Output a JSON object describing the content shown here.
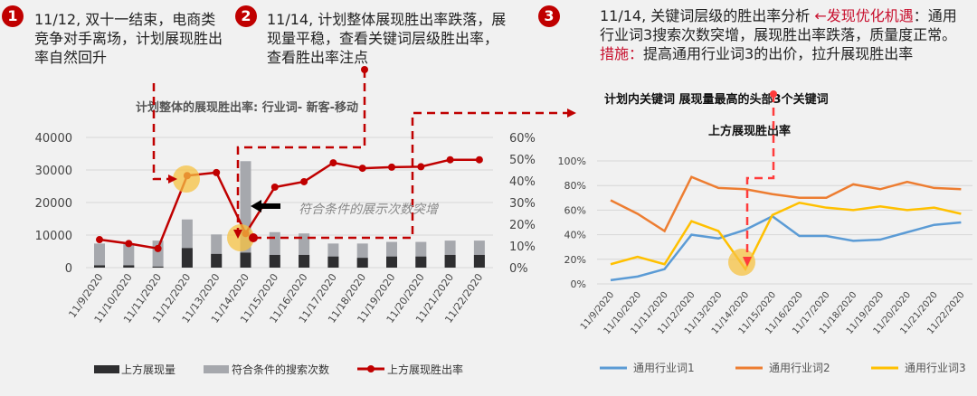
{
  "notes": [
    {
      "num": "1",
      "text": "11/12, 双十一结束，电商类竞争对手离场，计划展现胜出率自然回升"
    },
    {
      "num": "2",
      "text": "11/14, 计划整体展现胜出率跌落，展现量平稳，查看关键词层级胜出率，查看胜出率注点"
    },
    {
      "num": "3",
      "parts": [
        "11/14, 关键词层级的胜出率分析 ",
        "←发现优化机遇",
        "：通用行业词3搜索次数突增，展现胜出率跌落，质量度正常。",
        "措施：",
        "提高通用行业词3的出价，拉升展现胜出率"
      ]
    }
  ],
  "annotation_left": "符合条件的展示次数突增",
  "colors": {
    "accent_red": "#c00000",
    "bar_dark": "#2e2e30",
    "bar_gray": "#a6a8ad",
    "line_red": "#c00000",
    "series1": "#5b9bd5",
    "series2": "#ed7d31",
    "series3": "#ffc000",
    "highlight": "#f5c242"
  },
  "chart_data": [
    {
      "type": "bar+line",
      "title": "计划整体的展现胜出率: 行业词- 新客-移动",
      "categories": [
        "11/9/2020",
        "11/10/2020",
        "11/11/2020",
        "11/12/2020",
        "11/13/2020",
        "11/14/2020",
        "11/15/2020",
        "11/16/2020",
        "11/17/2020",
        "11/18/2020",
        "11/19/2020",
        "11/20/2020",
        "11/21/2020",
        "11/22/2020"
      ],
      "ylim_left": [
        0,
        40000
      ],
      "yticks_left": [
        "0",
        "10000",
        "20000",
        "30000",
        "40000"
      ],
      "ylim_right": [
        0,
        60
      ],
      "yticks_right": [
        "0%",
        "10%",
        "20%",
        "30%",
        "40%",
        "50%",
        "60%"
      ],
      "grid": true,
      "legend_placement": "bottom",
      "series": [
        {
          "name": "上方展现量",
          "kind": "bar",
          "values": [
            700,
            700,
            300,
            6000,
            4200,
            4600,
            3900,
            3900,
            3400,
            3000,
            3400,
            3400,
            3900,
            3900
          ]
        },
        {
          "name": "符合条件的搜索次数",
          "kind": "bar",
          "values": [
            7400,
            7400,
            8300,
            14800,
            10200,
            32700,
            10900,
            10500,
            7400,
            7400,
            7900,
            7900,
            8300,
            8300
          ]
        },
        {
          "name": "上方展现胜出率",
          "kind": "line",
          "axis": "right",
          "unit": "%",
          "values": [
            12.9,
            11.1,
            8.8,
            42.4,
            43.8,
            15.7,
            37.1,
            39.6,
            48.3,
            45.8,
            46.3,
            46.5,
            49.7,
            49.7
          ]
        }
      ]
    },
    {
      "type": "line",
      "title": "计划内关键词 展现量最高的头部3个关键词",
      "subtitle": "上方展现胜出率",
      "categories": [
        "11/9/2020",
        "11/10/2020",
        "11/11/2020",
        "11/12/2020",
        "11/13/2020",
        "11/14/2020",
        "11/15/2020",
        "11/16/2020",
        "11/17/2020",
        "11/18/2020",
        "11/19/2020",
        "11/20/2020",
        "11/21/2020",
        "11/22/2020"
      ],
      "ylim": [
        0,
        100
      ],
      "yticks": [
        "0%",
        "20%",
        "40%",
        "60%",
        "80%",
        "100%"
      ],
      "grid": true,
      "legend_placement": "bottom",
      "series": [
        {
          "name": "通用行业词1",
          "values": [
            3,
            6,
            12,
            40,
            37,
            44,
            55,
            39,
            39,
            35,
            36,
            42,
            48,
            50
          ]
        },
        {
          "name": "通用行业词2",
          "values": [
            68,
            57,
            43,
            87,
            78,
            77,
            73,
            70,
            70,
            81,
            77,
            83,
            78,
            77
          ]
        },
        {
          "name": "通用行业词3",
          "values": [
            16,
            22,
            16,
            51,
            43,
            12,
            56,
            66,
            62,
            60,
            63,
            60,
            62,
            57
          ]
        }
      ]
    }
  ]
}
